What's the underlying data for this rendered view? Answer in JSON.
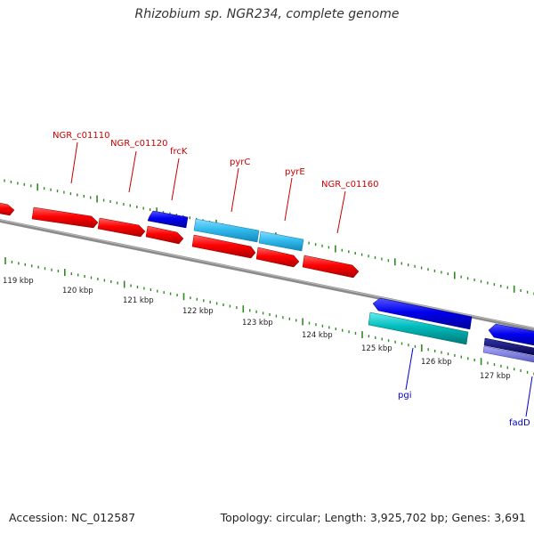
{
  "title": "Rhizobium sp. NGR234, complete genome",
  "footer": {
    "accession": "Accession: NC_012587",
    "summary": "Topology: circular; Length: 3,925,702 bp; Genes: 3,691"
  },
  "colors": {
    "background": "#ffffff",
    "backbone": "#8a8a8a",
    "tick": "#2e8b22",
    "forward_cds": "#ff0000",
    "forward_highlight": "#33bbee",
    "reverse_cds": "#0000ee",
    "reverse_rna": "#00bbbb",
    "reverse_dark": "#000066",
    "reverse_light": "#7777dd",
    "label_forward": "#cc0000",
    "label_reverse": "#0000cc"
  },
  "scale_labels": [
    "119 kbp",
    "120 kbp",
    "121 kbp",
    "122 kbp",
    "123 kbp",
    "124 kbp",
    "125 kbp",
    "126 kbp",
    "127 kbp"
  ],
  "gene_labels": [
    {
      "text": "NGR_c01110",
      "strand": "forward"
    },
    {
      "text": "NGR_c01120",
      "strand": "forward"
    },
    {
      "text": "frcK",
      "strand": "forward"
    },
    {
      "text": "pyrC",
      "strand": "forward"
    },
    {
      "text": "pyrE",
      "strand": "forward"
    },
    {
      "text": "NGR_c01160",
      "strand": "forward"
    },
    {
      "text": "pgi",
      "strand": "reverse"
    },
    {
      "text": "fadD",
      "strand": "reverse"
    }
  ]
}
